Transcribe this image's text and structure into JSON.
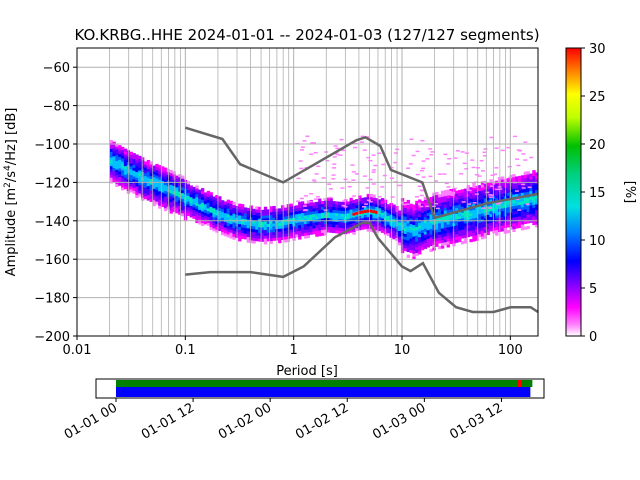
{
  "chart_data": {
    "type": "heatmap",
    "title": "KO.KRBG..HHE   2024-01-01 -- 2024-01-03  (127/127 segments)",
    "xlabel": "Period [s]",
    "ylabel_prefix": "Amplitude [m",
    "ylabel_sup1": "2",
    "ylabel_mid": "/s",
    "ylabel_sup2": "4",
    "ylabel_suffix": "/Hz] [dB]",
    "x_scale": "log",
    "xlim": [
      0.01,
      180
    ],
    "ylim": [
      -200,
      -50
    ],
    "x_ticks": [
      {
        "v": 0.01,
        "label": "0.01"
      },
      {
        "v": 0.1,
        "label": "0.1"
      },
      {
        "v": 1,
        "label": "1"
      },
      {
        "v": 10,
        "label": "10"
      },
      {
        "v": 100,
        "label": "100"
      }
    ],
    "y_ticks": [
      {
        "v": -60,
        "label": "−60"
      },
      {
        "v": -80,
        "label": "−80"
      },
      {
        "v": -100,
        "label": "−100"
      },
      {
        "v": -120,
        "label": "−120"
      },
      {
        "v": -140,
        "label": "−140"
      },
      {
        "v": -160,
        "label": "−160"
      },
      {
        "v": -180,
        "label": "−180"
      },
      {
        "v": -200,
        "label": "−200"
      }
    ],
    "grid": true,
    "nhnm": {
      "period": [
        0.1,
        0.22,
        0.32,
        0.8,
        3.8,
        4.6,
        6.3,
        7.9,
        15.4,
        20,
        354.8
      ],
      "value": [
        -168,
        -166.7,
        -166.7,
        -169.2,
        -141.1,
        -141.1,
        -149.4,
        -154.1,
        -163.5,
        -166.2,
        -185
      ]
    },
    "nlnm": {
      "period": [
        0.1,
        0.17,
        0.4,
        0.8,
        1.24,
        2.4,
        4.3,
        5,
        6,
        10,
        12,
        15.6,
        21.9,
        31.6,
        45,
        70,
        101,
        154,
        328
      ],
      "value": [
        -168,
        -166.7,
        -166.7,
        -169.2,
        -163.7,
        -148.6,
        -141.1,
        -141.1,
        -149,
        -163.8,
        -166.2,
        -162.1,
        -177.5,
        -185,
        -187.5,
        -187.5,
        -185,
        -185,
        -187.5
      ]
    },
    "nhnm_upper": {
      "period": [
        0.1,
        0.22,
        0.32,
        0.8,
        3.8,
        4.6,
        6.3,
        7.9,
        15.4,
        20,
        60,
        180
      ],
      "value": [
        -91.5,
        -97.4,
        -110.5,
        -120,
        -98,
        -96.5,
        -101,
        -113.5,
        -120,
        -138.5,
        -131,
        -126
      ]
    },
    "mode_curve": {
      "period": [
        0.02,
        0.03,
        0.05,
        0.08,
        0.12,
        0.2,
        0.3,
        0.5,
        0.8,
        1.2,
        2,
        3,
        4,
        5,
        6,
        8,
        10,
        13,
        20,
        30,
        50,
        80,
        120,
        180
      ],
      "value": [
        -108,
        -114,
        -120,
        -125,
        -130,
        -136,
        -140,
        -142,
        -141,
        -139,
        -137,
        -138,
        -136,
        -135,
        -136,
        -140,
        -143,
        -145,
        -140,
        -138,
        -135,
        -132,
        -130,
        -128
      ]
    },
    "colorbar": {
      "label": "[%]",
      "min": 0,
      "max": 30,
      "ticks": [
        {
          "v": 0,
          "label": "0"
        },
        {
          "v": 5,
          "label": "5"
        },
        {
          "v": 10,
          "label": "10"
        },
        {
          "v": 15,
          "label": "15"
        },
        {
          "v": 20,
          "label": "20"
        },
        {
          "v": 25,
          "label": "25"
        },
        {
          "v": 30,
          "label": "30"
        }
      ]
    },
    "timeline": {
      "start_hours": 0,
      "end_hours": 66,
      "data_start_hours": 0,
      "data_end_hours": 64.5,
      "ticks": [
        {
          "v": 0,
          "label": "01-01 00"
        },
        {
          "v": 12,
          "label": "01-01 12"
        },
        {
          "v": 24,
          "label": "01-02 00"
        },
        {
          "v": 36,
          "label": "01-02 12"
        },
        {
          "v": 48,
          "label": "01-03 00"
        },
        {
          "v": 60,
          "label": "01-03 12"
        }
      ],
      "gap_marker_hours": 62.5
    }
  }
}
